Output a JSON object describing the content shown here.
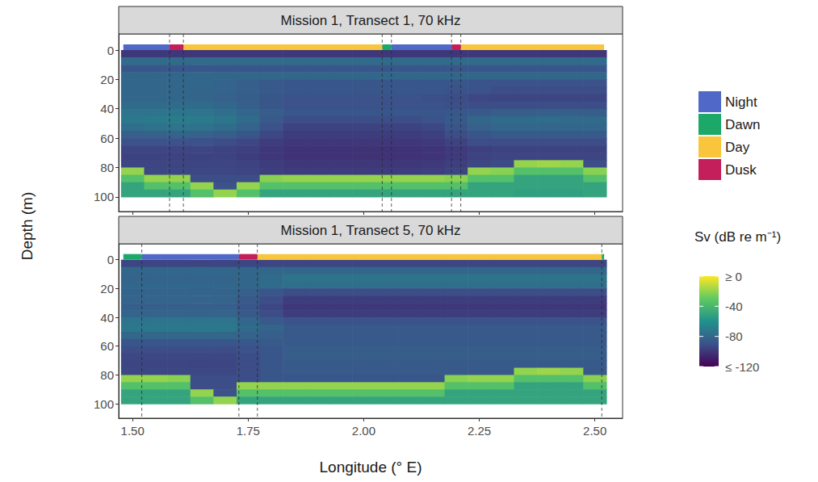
{
  "chart_data": [
    {
      "type": "heatmap",
      "title": "Mission 1, Transect 1, 70 kHz",
      "y_label": "Depth (m)",
      "xlim": [
        1.47,
        2.56
      ],
      "ylim": [
        -11,
        110
      ],
      "xticks": [
        {
          "value": 1.5,
          "label": "1.50"
        },
        1.75,
        {
          "value": 2,
          "label": "2.00"
        },
        2.25,
        {
          "value": 2.5,
          "label": "2.50"
        }
      ],
      "yticks": [
        0,
        20,
        40,
        60,
        80,
        100
      ],
      "grid": false,
      "tick_labels": "y",
      "legend": "right",
      "series": [
        {
          "name": "Night",
          "color": "#5068c8"
        },
        {
          "name": "Dawn",
          "color": "#1ba868"
        },
        {
          "name": "Day",
          "color": "#f8c53c"
        },
        {
          "name": "Dusk",
          "color": "#c41e5b"
        }
      ],
      "periods": [
        {
          "name": "Night",
          "start": 1.48,
          "end": 1.58
        },
        {
          "name": "Dusk",
          "start": 1.58,
          "end": 1.61
        },
        {
          "name": "Day",
          "start": 1.61,
          "end": 2.04
        },
        {
          "name": "Dawn",
          "start": 2.04,
          "end": 2.06
        },
        {
          "name": "Night",
          "start": 2.06,
          "end": 2.19
        },
        {
          "name": "Dusk",
          "start": 2.19,
          "end": 2.21
        },
        {
          "name": "Day",
          "start": 2.21,
          "end": 2.52
        }
      ],
      "colorbar": {
        "title": "Sv (dB re m⁻¹)",
        "range": [
          -120,
          0
        ],
        "ticks": [
          {
            "value": 0,
            "label": "≥ 0"
          },
          -40,
          -80,
          {
            "value": -120,
            "label": "≤ -120"
          }
        ],
        "colors": [
          "#440154",
          "#3b528b",
          "#21918c",
          "#5ec962",
          "#fde725"
        ]
      },
      "longitude": [
        1.5,
        1.55,
        1.6,
        1.65,
        1.7,
        1.75,
        1.8,
        1.85,
        1.9,
        1.95,
        2.0,
        2.05,
        2.1,
        2.15,
        2.2,
        2.25,
        2.3,
        2.35,
        2.4,
        2.45,
        2.5
      ],
      "depth": [
        2.5,
        7.5,
        12.5,
        17.5,
        22.5,
        27.5,
        32.5,
        37.5,
        42.5,
        47.5,
        52.5,
        57.5,
        62.5,
        67.5,
        72.5,
        77.5,
        82.5,
        87.5,
        92.5,
        97.5
      ],
      "sv": [
        [
          -100,
          -100,
          -100,
          -100,
          -100,
          -100,
          -100,
          -100,
          -100,
          -100,
          -100,
          -100,
          -100,
          -100,
          -100,
          -100,
          -100,
          -100,
          -100,
          -100,
          -100
        ],
        [
          -78,
          -78,
          -78,
          -78,
          -78,
          -78,
          -78,
          -78,
          -78,
          -78,
          -78,
          -78,
          -78,
          -78,
          -78,
          -78,
          -78,
          -78,
          -78,
          -78,
          -78
        ],
        [
          -88,
          -88,
          -88,
          -88,
          -88,
          -88,
          -88,
          -88,
          -88,
          -88,
          -88,
          -88,
          -88,
          -88,
          -88,
          -88,
          -88,
          -88,
          -88,
          -88,
          -88
        ],
        [
          -80,
          -80,
          -80,
          -80,
          -80,
          -80,
          -80,
          -80,
          -80,
          -80,
          -80,
          -80,
          -80,
          -80,
          -80,
          -80,
          -80,
          -80,
          -80,
          -80,
          -80
        ],
        [
          -80,
          -80,
          -80,
          -80,
          -82,
          -84,
          -86,
          -88,
          -88,
          -88,
          -88,
          -88,
          -88,
          -88,
          -88,
          -89,
          -90,
          -90,
          -90,
          -90,
          -90
        ],
        [
          -80,
          -80,
          -80,
          -81,
          -82,
          -84,
          -86,
          -88,
          -88,
          -88,
          -88,
          -88,
          -88,
          -88,
          -89,
          -90,
          -92,
          -92,
          -92,
          -92,
          -92
        ],
        [
          -80,
          -80,
          -80,
          -81,
          -83,
          -85,
          -88,
          -90,
          -90,
          -90,
          -90,
          -90,
          -90,
          -91,
          -92,
          -94,
          -95,
          -95,
          -95,
          -95,
          -95
        ],
        [
          -78,
          -78,
          -78,
          -78,
          -80,
          -84,
          -88,
          -90,
          -90,
          -90,
          -90,
          -90,
          -90,
          -90,
          -91,
          -92,
          -92,
          -92,
          -92,
          -92,
          -92
        ],
        [
          -74,
          -74,
          -73,
          -74,
          -76,
          -80,
          -85,
          -88,
          -88,
          -88,
          -88,
          -88,
          -88,
          -88,
          -87,
          -86,
          -85,
          -85,
          -84,
          -84,
          -85
        ],
        [
          -72,
          -71,
          -70,
          -71,
          -73,
          -78,
          -86,
          -92,
          -92,
          -92,
          -92,
          -92,
          -92,
          -90,
          -86,
          -80,
          -78,
          -78,
          -77,
          -78,
          -78
        ],
        [
          -76,
          -75,
          -74,
          -75,
          -77,
          -82,
          -90,
          -96,
          -96,
          -96,
          -96,
          -96,
          -96,
          -94,
          -88,
          -83,
          -80,
          -80,
          -80,
          -80,
          -80
        ],
        [
          -84,
          -83,
          -82,
          -83,
          -85,
          -88,
          -94,
          -98,
          -98,
          -98,
          -98,
          -98,
          -98,
          -97,
          -92,
          -88,
          -86,
          -86,
          -86,
          -86,
          -86
        ],
        [
          -90,
          -90,
          -90,
          -90,
          -92,
          -94,
          -98,
          -100,
          -100,
          -100,
          -100,
          -100,
          -100,
          -99,
          -96,
          -92,
          -92,
          -92,
          -92,
          -92,
          -92
        ],
        [
          -95,
          -95,
          -95,
          -95,
          -96,
          -97,
          -100,
          -102,
          -102,
          -102,
          -102,
          -102,
          -102,
          -101,
          -99,
          -97,
          -96,
          -96,
          -96,
          -96,
          -96
        ],
        [
          -96,
          -96,
          -96,
          -96,
          -96,
          -98,
          -100,
          -102,
          -102,
          -102,
          -102,
          -102,
          -102,
          -101,
          -99,
          -96,
          -95,
          -95,
          -95,
          -95,
          -95
        ],
        [
          -95,
          -95,
          -95,
          -95,
          -95,
          -96,
          -98,
          -100,
          -100,
          -100,
          -100,
          -100,
          -100,
          -99,
          -97,
          -94,
          -93,
          -20,
          -18,
          -20,
          -92
        ],
        [
          -20,
          -94,
          -94,
          -94,
          -94,
          -95,
          -97,
          -98,
          -98,
          -98,
          -98,
          -98,
          -98,
          -97,
          -95,
          -20,
          -22,
          -35,
          -35,
          -35,
          -22
        ],
        [
          -35,
          -20,
          -20,
          -92,
          -92,
          -92,
          -22,
          -20,
          -20,
          -20,
          -20,
          -20,
          -20,
          -20,
          -22,
          -35,
          -35,
          -50,
          -50,
          -50,
          -35
        ],
        [
          -50,
          -35,
          -35,
          -20,
          -90,
          -20,
          -35,
          -35,
          -35,
          -35,
          -35,
          -35,
          -35,
          -35,
          -35,
          -50,
          -50,
          -50,
          -50,
          -50,
          -50
        ],
        [
          -50,
          -50,
          -50,
          -35,
          -20,
          -35,
          -50,
          -50,
          -50,
          -50,
          -50,
          -50,
          -50,
          -50,
          -50,
          -50,
          -50,
          -52,
          -52,
          -52,
          -50
        ]
      ]
    },
    {
      "type": "heatmap",
      "title": "Mission 1, Transect 5, 70 kHz",
      "x_label": "Longitude (° E)",
      "xlim": [
        1.47,
        2.56
      ],
      "ylim": [
        -11,
        110
      ],
      "xticks": [
        {
          "value": 1.5,
          "label": "1.50"
        },
        1.75,
        {
          "value": 2,
          "label": "2.00"
        },
        2.25,
        {
          "value": 2.5,
          "label": "2.50"
        }
      ],
      "yticks": [
        0,
        20,
        40,
        60,
        80,
        100
      ],
      "grid": false,
      "tick_labels": true,
      "series": [
        {
          "name": "Night",
          "color": "#5068c8"
        },
        {
          "name": "Dawn",
          "color": "#1ba868"
        },
        {
          "name": "Day",
          "color": "#f8c53c"
        },
        {
          "name": "Dusk",
          "color": "#c41e5b"
        }
      ],
      "periods": [
        {
          "name": "Dawn",
          "start": 1.48,
          "end": 1.52
        },
        {
          "name": "Night",
          "start": 1.52,
          "end": 1.73
        },
        {
          "name": "Dusk",
          "start": 1.73,
          "end": 1.77
        },
        {
          "name": "Day",
          "start": 1.77,
          "end": 2.515
        },
        {
          "name": "Dawn",
          "start": 2.515,
          "end": 2.52
        }
      ],
      "longitude": [
        1.5,
        1.55,
        1.6,
        1.65,
        1.7,
        1.75,
        1.8,
        1.85,
        1.9,
        1.95,
        2.0,
        2.05,
        2.1,
        2.15,
        2.2,
        2.25,
        2.3,
        2.35,
        2.4,
        2.45,
        2.5
      ],
      "depth": [
        2.5,
        7.5,
        12.5,
        17.5,
        22.5,
        27.5,
        32.5,
        37.5,
        42.5,
        47.5,
        52.5,
        57.5,
        62.5,
        67.5,
        72.5,
        77.5,
        82.5,
        87.5,
        92.5,
        97.5
      ],
      "sv": [
        [
          -95,
          -95,
          -95,
          -95,
          -95,
          -95,
          -95,
          -95,
          -95,
          -95,
          -95,
          -95,
          -95,
          -95,
          -95,
          -95,
          -95,
          -95,
          -95,
          -95,
          -95
        ],
        [
          -80,
          -80,
          -80,
          -80,
          -80,
          -80,
          -80,
          -80,
          -80,
          -80,
          -80,
          -80,
          -80,
          -80,
          -80,
          -80,
          -80,
          -80,
          -80,
          -80,
          -80
        ],
        [
          -82,
          -82,
          -82,
          -82,
          -82,
          -80,
          -78,
          -75,
          -75,
          -75,
          -75,
          -75,
          -75,
          -75,
          -75,
          -75,
          -75,
          -75,
          -75,
          -75,
          -75
        ],
        [
          -80,
          -80,
          -80,
          -80,
          -80,
          -80,
          -78,
          -76,
          -76,
          -76,
          -76,
          -76,
          -76,
          -76,
          -76,
          -76,
          -76,
          -76,
          -76,
          -76,
          -76
        ],
        [
          -82,
          -82,
          -82,
          -82,
          -82,
          -84,
          -88,
          -92,
          -92,
          -92,
          -92,
          -92,
          -92,
          -92,
          -92,
          -92,
          -92,
          -92,
          -92,
          -92,
          -92
        ],
        [
          -82,
          -82,
          -82,
          -82,
          -82,
          -86,
          -92,
          -98,
          -98,
          -98,
          -98,
          -98,
          -98,
          -98,
          -98,
          -98,
          -98,
          -98,
          -98,
          -98,
          -98
        ],
        [
          -84,
          -84,
          -84,
          -84,
          -84,
          -88,
          -94,
          -100,
          -100,
          -100,
          -100,
          -100,
          -100,
          -100,
          -100,
          -100,
          -100,
          -100,
          -100,
          -100,
          -100
        ],
        [
          -82,
          -82,
          -82,
          -82,
          -82,
          -86,
          -92,
          -98,
          -98,
          -98,
          -98,
          -98,
          -98,
          -98,
          -98,
          -98,
          -98,
          -98,
          -98,
          -98,
          -98
        ],
        [
          -74,
          -74,
          -74,
          -74,
          -74,
          -80,
          -86,
          -90,
          -90,
          -90,
          -90,
          -90,
          -90,
          -90,
          -90,
          -90,
          -90,
          -90,
          -90,
          -90,
          -90
        ],
        [
          -72,
          -72,
          -72,
          -72,
          -72,
          -78,
          -82,
          -86,
          -86,
          -86,
          -86,
          -86,
          -86,
          -86,
          -86,
          -86,
          -86,
          -86,
          -86,
          -86,
          -86
        ],
        [
          -80,
          -80,
          -80,
          -80,
          -80,
          -82,
          -84,
          -86,
          -86,
          -86,
          -86,
          -86,
          -86,
          -86,
          -86,
          -86,
          -86,
          -86,
          -86,
          -86,
          -86
        ],
        [
          -88,
          -88,
          -88,
          -88,
          -88,
          -87,
          -86,
          -86,
          -86,
          -86,
          -86,
          -86,
          -86,
          -86,
          -86,
          -86,
          -86,
          -86,
          -86,
          -86,
          -86
        ],
        [
          -92,
          -92,
          -92,
          -92,
          -92,
          -90,
          -88,
          -85,
          -85,
          -85,
          -85,
          -85,
          -85,
          -85,
          -85,
          -85,
          -85,
          -85,
          -85,
          -85,
          -85
        ],
        [
          -94,
          -94,
          -94,
          -94,
          -94,
          -92,
          -88,
          -85,
          -85,
          -85,
          -85,
          -85,
          -85,
          -85,
          -85,
          -85,
          -85,
          -85,
          -85,
          -85,
          -85
        ],
        [
          -95,
          -95,
          -95,
          -95,
          -95,
          -92,
          -88,
          -86,
          -86,
          -86,
          -86,
          -86,
          -86,
          -86,
          -86,
          -86,
          -86,
          -86,
          -86,
          -86,
          -86
        ],
        [
          -94,
          -94,
          -94,
          -94,
          -94,
          -92,
          -88,
          -86,
          -86,
          -86,
          -86,
          -86,
          -86,
          -86,
          -86,
          -86,
          -86,
          -20,
          -18,
          -20,
          -86
        ],
        [
          -20,
          -20,
          -22,
          -92,
          -92,
          -92,
          -88,
          -88,
          -88,
          -88,
          -88,
          -88,
          -88,
          -88,
          -22,
          -20,
          -20,
          -35,
          -35,
          -35,
          -22
        ],
        [
          -35,
          -35,
          -35,
          -92,
          -92,
          -20,
          -20,
          -20,
          -20,
          -20,
          -20,
          -20,
          -20,
          -20,
          -35,
          -35,
          -35,
          -50,
          -50,
          -50,
          -35
        ],
        [
          -50,
          -50,
          -50,
          -20,
          -90,
          -35,
          -35,
          -35,
          -35,
          -35,
          -35,
          -35,
          -35,
          -35,
          -50,
          -50,
          -50,
          -50,
          -50,
          -50,
          -50
        ],
        [
          -50,
          -50,
          -50,
          -35,
          -20,
          -50,
          -50,
          -50,
          -50,
          -50,
          -50,
          -50,
          -50,
          -50,
          -50,
          -50,
          -50,
          -50,
          -50,
          -50,
          -50
        ]
      ]
    }
  ]
}
